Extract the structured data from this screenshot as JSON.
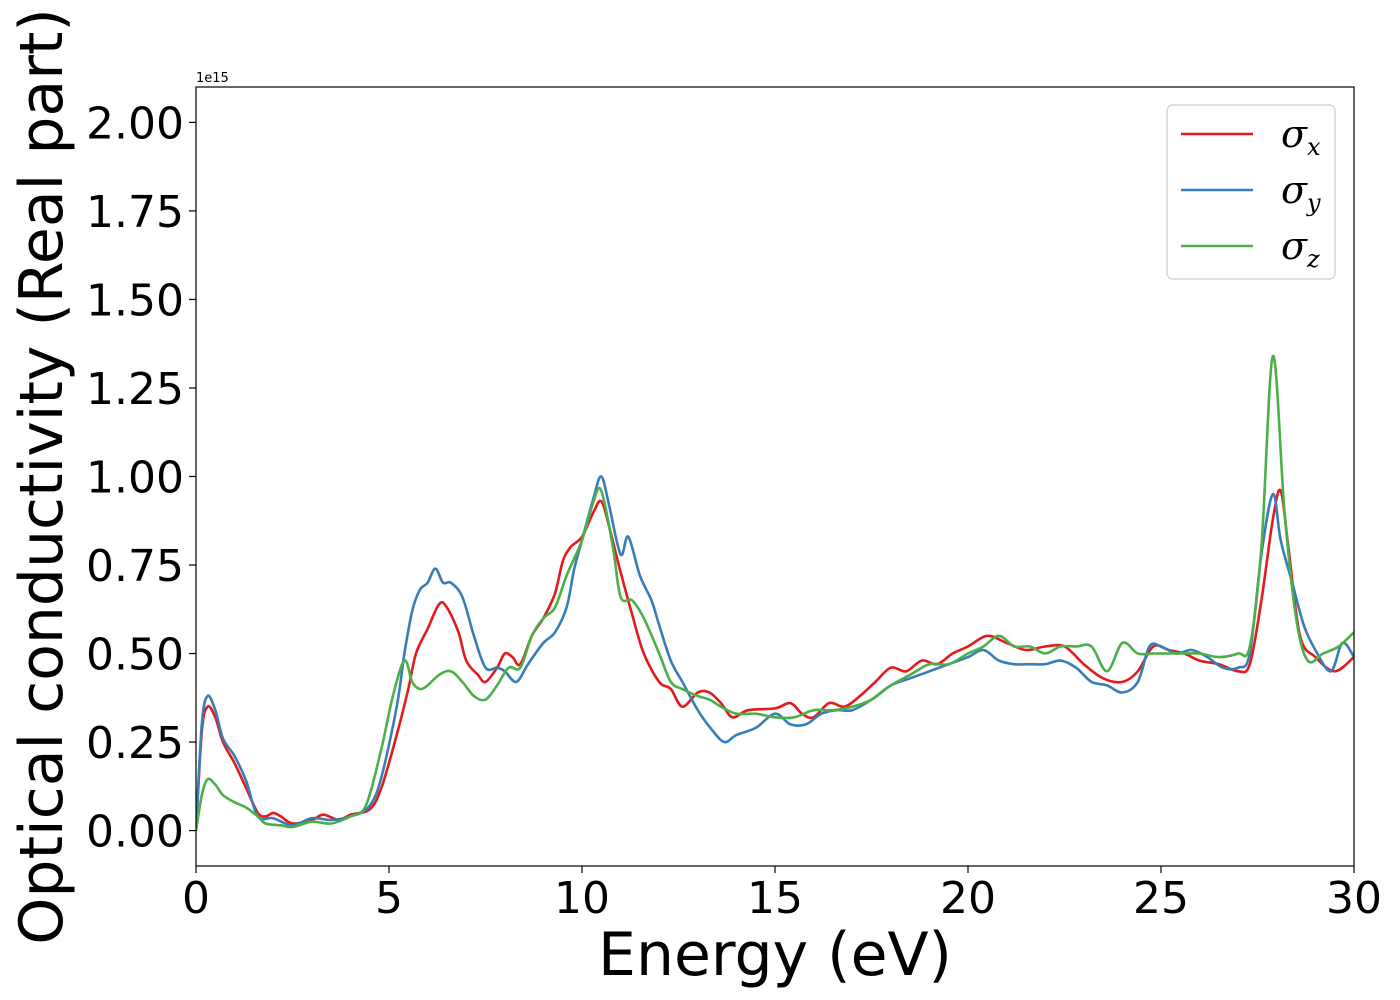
{
  "chart_data": {
    "type": "line",
    "xlabel": "Energy (eV)",
    "ylabel": "Optical conductivity (Real part)",
    "y_offset_label": "1e15",
    "xlim": [
      0,
      30
    ],
    "ylim": [
      -0.1,
      2.1
    ],
    "xticks": [
      0,
      5,
      10,
      15,
      20,
      25,
      30
    ],
    "xtick_labels": [
      "0",
      "5",
      "10",
      "15",
      "20",
      "25",
      "30"
    ],
    "yticks": [
      0,
      0.25,
      0.5,
      0.75,
      1.0,
      1.25,
      1.5,
      1.75,
      2.0
    ],
    "ytick_labels": [
      "0.00",
      "0.25",
      "0.50",
      "0.75",
      "1.00",
      "1.25",
      "1.50",
      "1.75",
      "2.00"
    ],
    "grid": false,
    "legend_position": "top-right",
    "series": [
      {
        "name": "σx",
        "symbol": "σ",
        "subscript": "x",
        "color": "#e41a1c",
        "points": [
          [
            0,
            0
          ],
          [
            0.15,
            0.28
          ],
          [
            0.3,
            0.35
          ],
          [
            0.5,
            0.32
          ],
          [
            0.7,
            0.25
          ],
          [
            1.0,
            0.19
          ],
          [
            1.3,
            0.12
          ],
          [
            1.6,
            0.05
          ],
          [
            1.8,
            0.04
          ],
          [
            2.0,
            0.05
          ],
          [
            2.2,
            0.04
          ],
          [
            2.5,
            0.02
          ],
          [
            3.0,
            0.03
          ],
          [
            3.3,
            0.045
          ],
          [
            3.7,
            0.03
          ],
          [
            4.0,
            0.045
          ],
          [
            4.5,
            0.06
          ],
          [
            4.8,
            0.12
          ],
          [
            5.2,
            0.27
          ],
          [
            5.5,
            0.4
          ],
          [
            5.7,
            0.5
          ],
          [
            6.0,
            0.57
          ],
          [
            6.3,
            0.64
          ],
          [
            6.5,
            0.63
          ],
          [
            6.8,
            0.56
          ],
          [
            7.0,
            0.48
          ],
          [
            7.3,
            0.44
          ],
          [
            7.5,
            0.42
          ],
          [
            7.8,
            0.46
          ],
          [
            8.0,
            0.5
          ],
          [
            8.2,
            0.49
          ],
          [
            8.4,
            0.47
          ],
          [
            8.7,
            0.55
          ],
          [
            9.0,
            0.6
          ],
          [
            9.3,
            0.67
          ],
          [
            9.5,
            0.76
          ],
          [
            9.7,
            0.8
          ],
          [
            10.0,
            0.83
          ],
          [
            10.3,
            0.9
          ],
          [
            10.5,
            0.93
          ],
          [
            10.7,
            0.86
          ],
          [
            11.0,
            0.73
          ],
          [
            11.3,
            0.61
          ],
          [
            11.6,
            0.5
          ],
          [
            12.0,
            0.42
          ],
          [
            12.3,
            0.4
          ],
          [
            12.6,
            0.35
          ],
          [
            13.0,
            0.39
          ],
          [
            13.3,
            0.39
          ],
          [
            13.6,
            0.36
          ],
          [
            13.9,
            0.32
          ],
          [
            14.3,
            0.34
          ],
          [
            15.0,
            0.345
          ],
          [
            15.4,
            0.36
          ],
          [
            15.7,
            0.33
          ],
          [
            16.0,
            0.32
          ],
          [
            16.4,
            0.36
          ],
          [
            16.8,
            0.35
          ],
          [
            17.2,
            0.38
          ],
          [
            17.6,
            0.42
          ],
          [
            18.0,
            0.46
          ],
          [
            18.4,
            0.45
          ],
          [
            18.8,
            0.48
          ],
          [
            19.2,
            0.47
          ],
          [
            19.6,
            0.5
          ],
          [
            20.0,
            0.52
          ],
          [
            20.5,
            0.55
          ],
          [
            21.0,
            0.53
          ],
          [
            21.5,
            0.51
          ],
          [
            22.0,
            0.52
          ],
          [
            22.5,
            0.52
          ],
          [
            23.0,
            0.47
          ],
          [
            23.5,
            0.43
          ],
          [
            24.0,
            0.42
          ],
          [
            24.4,
            0.45
          ],
          [
            24.8,
            0.52
          ],
          [
            25.2,
            0.51
          ],
          [
            25.6,
            0.5
          ],
          [
            26.0,
            0.48
          ],
          [
            26.5,
            0.47
          ],
          [
            27.0,
            0.45
          ],
          [
            27.3,
            0.47
          ],
          [
            27.6,
            0.65
          ],
          [
            27.9,
            0.88
          ],
          [
            28.1,
            0.96
          ],
          [
            28.3,
            0.8
          ],
          [
            28.6,
            0.55
          ],
          [
            29.0,
            0.49
          ],
          [
            29.5,
            0.45
          ],
          [
            30.0,
            0.49
          ]
        ]
      },
      {
        "name": "σy",
        "symbol": "σ",
        "subscript": "y",
        "color": "#377eb8",
        "points": [
          [
            0,
            0
          ],
          [
            0.15,
            0.3
          ],
          [
            0.3,
            0.38
          ],
          [
            0.5,
            0.34
          ],
          [
            0.7,
            0.26
          ],
          [
            1.0,
            0.21
          ],
          [
            1.3,
            0.14
          ],
          [
            1.6,
            0.04
          ],
          [
            2.0,
            0.035
          ],
          [
            2.5,
            0.015
          ],
          [
            3.0,
            0.035
          ],
          [
            3.5,
            0.03
          ],
          [
            4.0,
            0.04
          ],
          [
            4.5,
            0.07
          ],
          [
            4.8,
            0.15
          ],
          [
            5.2,
            0.35
          ],
          [
            5.4,
            0.5
          ],
          [
            5.6,
            0.62
          ],
          [
            5.8,
            0.68
          ],
          [
            6.0,
            0.7
          ],
          [
            6.2,
            0.74
          ],
          [
            6.4,
            0.7
          ],
          [
            6.6,
            0.7
          ],
          [
            6.9,
            0.66
          ],
          [
            7.2,
            0.55
          ],
          [
            7.5,
            0.46
          ],
          [
            7.8,
            0.46
          ],
          [
            8.0,
            0.45
          ],
          [
            8.3,
            0.42
          ],
          [
            8.6,
            0.47
          ],
          [
            9.0,
            0.53
          ],
          [
            9.3,
            0.56
          ],
          [
            9.6,
            0.63
          ],
          [
            9.8,
            0.74
          ],
          [
            10.0,
            0.82
          ],
          [
            10.3,
            0.94
          ],
          [
            10.5,
            1.0
          ],
          [
            10.7,
            0.92
          ],
          [
            11.0,
            0.78
          ],
          [
            11.2,
            0.83
          ],
          [
            11.5,
            0.72
          ],
          [
            11.8,
            0.65
          ],
          [
            12.0,
            0.58
          ],
          [
            12.3,
            0.48
          ],
          [
            12.6,
            0.42
          ],
          [
            13.0,
            0.34
          ],
          [
            13.4,
            0.28
          ],
          [
            13.7,
            0.25
          ],
          [
            14.0,
            0.27
          ],
          [
            14.5,
            0.29
          ],
          [
            15.0,
            0.33
          ],
          [
            15.4,
            0.3
          ],
          [
            15.8,
            0.3
          ],
          [
            16.2,
            0.33
          ],
          [
            16.6,
            0.34
          ],
          [
            17.0,
            0.34
          ],
          [
            17.5,
            0.37
          ],
          [
            18.0,
            0.41
          ],
          [
            18.5,
            0.43
          ],
          [
            19.0,
            0.45
          ],
          [
            19.5,
            0.47
          ],
          [
            20.0,
            0.49
          ],
          [
            20.4,
            0.51
          ],
          [
            20.8,
            0.48
          ],
          [
            21.2,
            0.47
          ],
          [
            21.6,
            0.47
          ],
          [
            22.0,
            0.47
          ],
          [
            22.4,
            0.48
          ],
          [
            22.8,
            0.46
          ],
          [
            23.2,
            0.42
          ],
          [
            23.6,
            0.41
          ],
          [
            24.0,
            0.39
          ],
          [
            24.4,
            0.42
          ],
          [
            24.7,
            0.52
          ],
          [
            25.0,
            0.52
          ],
          [
            25.4,
            0.5
          ],
          [
            25.8,
            0.51
          ],
          [
            26.2,
            0.49
          ],
          [
            26.6,
            0.46
          ],
          [
            27.0,
            0.46
          ],
          [
            27.3,
            0.5
          ],
          [
            27.6,
            0.78
          ],
          [
            27.9,
            0.95
          ],
          [
            28.1,
            0.82
          ],
          [
            28.4,
            0.7
          ],
          [
            28.7,
            0.58
          ],
          [
            29.0,
            0.51
          ],
          [
            29.4,
            0.45
          ],
          [
            29.7,
            0.53
          ],
          [
            30.0,
            0.49
          ]
        ]
      },
      {
        "name": "σz",
        "symbol": "σ",
        "subscript": "z",
        "color": "#4daf4a",
        "points": [
          [
            0,
            0
          ],
          [
            0.15,
            0.1
          ],
          [
            0.3,
            0.145
          ],
          [
            0.5,
            0.13
          ],
          [
            0.7,
            0.1
          ],
          [
            1.0,
            0.08
          ],
          [
            1.3,
            0.065
          ],
          [
            1.6,
            0.04
          ],
          [
            1.8,
            0.02
          ],
          [
            2.2,
            0.015
          ],
          [
            2.5,
            0.01
          ],
          [
            3.0,
            0.025
          ],
          [
            3.5,
            0.02
          ],
          [
            4.0,
            0.04
          ],
          [
            4.4,
            0.07
          ],
          [
            4.8,
            0.23
          ],
          [
            5.1,
            0.38
          ],
          [
            5.4,
            0.48
          ],
          [
            5.6,
            0.42
          ],
          [
            5.8,
            0.4
          ],
          [
            6.0,
            0.41
          ],
          [
            6.3,
            0.44
          ],
          [
            6.6,
            0.45
          ],
          [
            6.9,
            0.42
          ],
          [
            7.2,
            0.38
          ],
          [
            7.5,
            0.37
          ],
          [
            7.8,
            0.41
          ],
          [
            8.1,
            0.46
          ],
          [
            8.4,
            0.46
          ],
          [
            8.7,
            0.55
          ],
          [
            9.0,
            0.6
          ],
          [
            9.3,
            0.63
          ],
          [
            9.6,
            0.72
          ],
          [
            10.0,
            0.82
          ],
          [
            10.3,
            0.93
          ],
          [
            10.5,
            0.96
          ],
          [
            10.8,
            0.8
          ],
          [
            11.0,
            0.66
          ],
          [
            11.3,
            0.65
          ],
          [
            11.6,
            0.6
          ],
          [
            12.0,
            0.5
          ],
          [
            12.3,
            0.42
          ],
          [
            12.6,
            0.4
          ],
          [
            13.0,
            0.38
          ],
          [
            13.3,
            0.37
          ],
          [
            13.6,
            0.35
          ],
          [
            14.0,
            0.33
          ],
          [
            14.5,
            0.33
          ],
          [
            15.0,
            0.32
          ],
          [
            15.5,
            0.32
          ],
          [
            16.0,
            0.34
          ],
          [
            16.5,
            0.34
          ],
          [
            17.0,
            0.35
          ],
          [
            17.5,
            0.37
          ],
          [
            18.0,
            0.41
          ],
          [
            18.5,
            0.44
          ],
          [
            19.0,
            0.47
          ],
          [
            19.5,
            0.47
          ],
          [
            20.0,
            0.5
          ],
          [
            20.4,
            0.52
          ],
          [
            20.8,
            0.55
          ],
          [
            21.2,
            0.52
          ],
          [
            21.6,
            0.52
          ],
          [
            22.0,
            0.5
          ],
          [
            22.4,
            0.52
          ],
          [
            22.8,
            0.52
          ],
          [
            23.2,
            0.52
          ],
          [
            23.6,
            0.45
          ],
          [
            24.0,
            0.53
          ],
          [
            24.4,
            0.5
          ],
          [
            24.8,
            0.5
          ],
          [
            25.2,
            0.5
          ],
          [
            25.6,
            0.5
          ],
          [
            26.0,
            0.5
          ],
          [
            26.5,
            0.49
          ],
          [
            27.0,
            0.5
          ],
          [
            27.3,
            0.52
          ],
          [
            27.6,
            0.8
          ],
          [
            27.9,
            1.34
          ],
          [
            28.2,
            0.9
          ],
          [
            28.5,
            0.6
          ],
          [
            28.8,
            0.48
          ],
          [
            29.2,
            0.5
          ],
          [
            29.6,
            0.52
          ],
          [
            30.0,
            0.56
          ]
        ]
      }
    ]
  }
}
